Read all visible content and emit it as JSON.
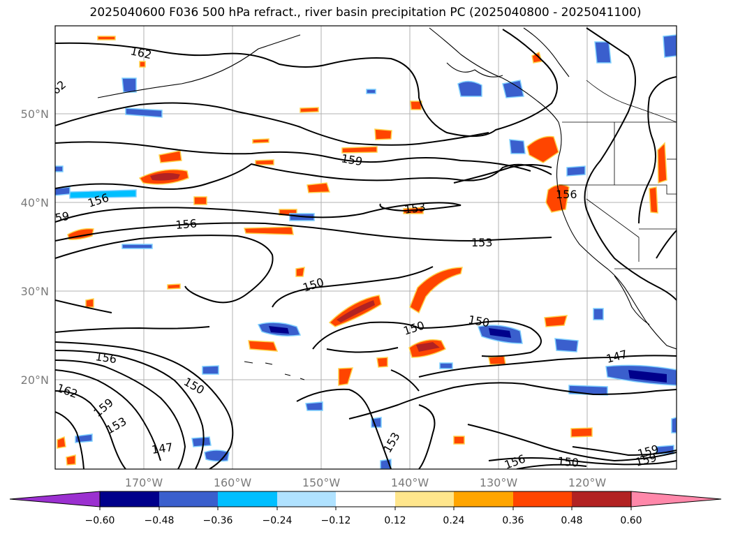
{
  "title": "2025040600 F036 500 hPa refract., river basin precipitation PC (2025040800 - 2025041100)",
  "map": {
    "lon_ticks": [
      "170°W",
      "160°W",
      "150°W",
      "140°W",
      "130°W",
      "120°W"
    ],
    "lat_ticks": [
      "50°N",
      "40°N",
      "30°N",
      "20°N"
    ],
    "contour_labels": [
      "162",
      "159",
      "156",
      "156",
      "156",
      "153",
      "150",
      "150",
      "150",
      "147",
      "147",
      "153",
      "159",
      "153",
      "150",
      "156",
      "162",
      "153",
      "159",
      "150",
      "159",
      "59",
      "62",
      "156"
    ]
  },
  "colorbar": {
    "tick_labels": [
      "−0.60",
      "−0.48",
      "−0.36",
      "−0.24",
      "−0.12",
      "0.12",
      "0.24",
      "0.36",
      "0.48",
      "0.60"
    ],
    "colors": [
      "#9b30d0",
      "#00008b",
      "#3a5fcd",
      "#00bfff",
      "#b0e2ff",
      "#ffffff",
      "#ffe68c",
      "#ffa500",
      "#ff4500",
      "#b22222",
      "#ff88aa"
    ]
  }
}
